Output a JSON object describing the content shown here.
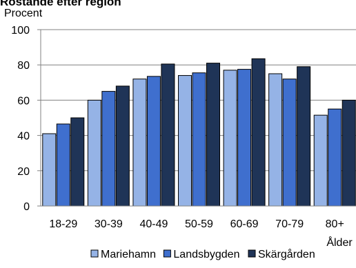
{
  "chart_data": {
    "type": "bar",
    "title": "Röstande efter region",
    "ylabel": "Procent",
    "xlabel": "Ålder",
    "categories": [
      "18-29",
      "30-39",
      "40-49",
      "50-59",
      "60-69",
      "70-79",
      "80+"
    ],
    "series": [
      {
        "name": "Mariehamn",
        "color": "#95b3e6",
        "values": [
          41,
          60,
          72,
          74,
          77,
          75,
          51.5
        ]
      },
      {
        "name": "Landsbygden",
        "color": "#3f6fce",
        "values": [
          46.5,
          65,
          73.5,
          75.5,
          77.5,
          72,
          55
        ]
      },
      {
        "name": "Skärgården",
        "color": "#1f3457",
        "values": [
          50,
          68,
          80.5,
          81,
          83.5,
          79,
          60
        ]
      }
    ],
    "yticks": [
      "0",
      "20",
      "40",
      "60",
      "80",
      "100"
    ],
    "ylim": [
      0,
      100
    ],
    "grid": true,
    "legend_position": "bottom"
  }
}
